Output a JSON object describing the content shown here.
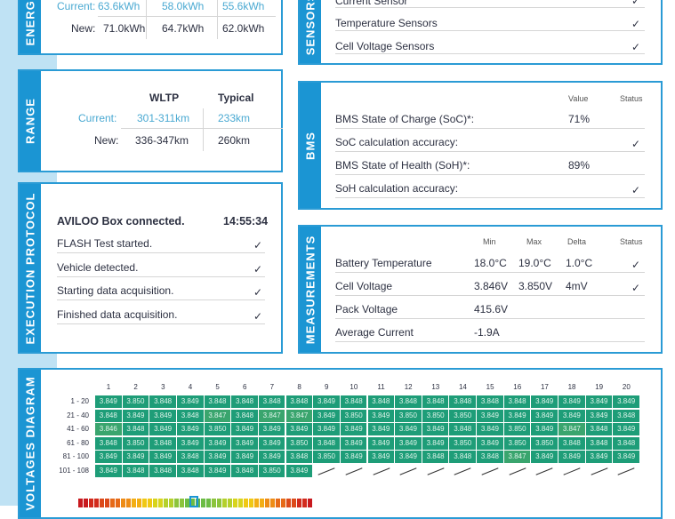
{
  "energy": {
    "label": "ENERGY",
    "current_label": "Current:",
    "new_label": "New:",
    "current": [
      "63.6kWh",
      "58.0kWh",
      "55.6kWh"
    ],
    "new": [
      "71.0kWh",
      "64.7kWh",
      "62.0kWh"
    ]
  },
  "sensors": {
    "label": "SENSORS",
    "items": [
      {
        "name": "Current Sensor"
      },
      {
        "name": "Temperature Sensors"
      },
      {
        "name": "Cell Voltage Sensors"
      }
    ]
  },
  "range": {
    "label": "RANGE",
    "col_wltp": "WLTP",
    "col_typical": "Typical",
    "current_label": "Current:",
    "new_label": "New:",
    "current": [
      "301-311km",
      "233km"
    ],
    "new": [
      "336-347km",
      "260km"
    ]
  },
  "bms": {
    "label": "BMS",
    "col_value": "Value",
    "col_status": "Status",
    "rows": [
      {
        "name": "BMS State of Charge (SoC)*:",
        "value": "71%"
      },
      {
        "name": "SoC calculation accuracy:",
        "value": "",
        "ok": true
      },
      {
        "name": "BMS State of Health (SoH)*:",
        "value": "89%"
      },
      {
        "name": "SoH calculation accuracy:",
        "value": "",
        "ok": true
      }
    ]
  },
  "execution": {
    "label": "EXECUTION PROTOCOL",
    "title": "AVILOO Box connected.",
    "time": "14:55:34",
    "steps": [
      "FLASH Test started.",
      "Vehicle detected.",
      "Starting data acquisition.",
      "Finished data acquisition."
    ]
  },
  "measurements": {
    "label": "MEASUREMENTS",
    "cols": [
      "Min",
      "Max",
      "Delta",
      "Status"
    ],
    "rows": [
      {
        "name": "Battery Temperature",
        "min": "18.0°C",
        "max": "19.0°C",
        "delta": "1.0°C",
        "ok": true
      },
      {
        "name": "Cell Voltage",
        "min": "3.846V",
        "max": "3.850V",
        "delta": "4mV",
        "ok": true
      },
      {
        "name": "Pack Voltage",
        "min": "415.6V",
        "max": "",
        "delta": ""
      },
      {
        "name": "Average Current",
        "min": "-1.9A",
        "max": "",
        "delta": ""
      }
    ]
  },
  "voltages": {
    "label": "VOLTAGES DIAGRAM",
    "row_labels": [
      "1 - 20",
      "21 - 40",
      "41 - 60",
      "61 - 80",
      "81 - 100",
      "101 - 108"
    ],
    "rows": [
      [
        "3.849",
        "3.850",
        "3.848",
        "3.849",
        "3.848",
        "3.848",
        "3.848",
        "3.848",
        "3.849",
        "3.848",
        "3.848",
        "3.848",
        "3.848",
        "3.848",
        "3.848",
        "3.848",
        "3.849",
        "3.849",
        "3.849",
        "3.849"
      ],
      [
        "3.848",
        "3.849",
        "3.849",
        "3.848",
        "3.847",
        "3.848",
        "3.847",
        "3.847",
        "3.849",
        "3.850",
        "3.849",
        "3.850",
        "3.850",
        "3.850",
        "3.849",
        "3.849",
        "3.849",
        "3.849",
        "3.849",
        "3.848"
      ],
      [
        "3.846",
        "3.848",
        "3.849",
        "3.849",
        "3.850",
        "3.849",
        "3.849",
        "3.849",
        "3.849",
        "3.849",
        "3.849",
        "3.849",
        "3.849",
        "3.848",
        "3.849",
        "3.850",
        "3.849",
        "3.847",
        "3.848",
        "3.849"
      ],
      [
        "3.848",
        "3.850",
        "3.848",
        "3.849",
        "3.849",
        "3.849",
        "3.849",
        "3.850",
        "3.848",
        "3.849",
        "3.849",
        "3.849",
        "3.849",
        "3.850",
        "3.849",
        "3.850",
        "3.850",
        "3.848",
        "3.848",
        "3.848"
      ],
      [
        "3.849",
        "3.849",
        "3.849",
        "3.848",
        "3.849",
        "3.849",
        "3.849",
        "3.848",
        "3.850",
        "3.849",
        "3.849",
        "3.849",
        "3.848",
        "3.848",
        "3.848",
        "3.847",
        "3.849",
        "3.849",
        "3.849",
        "3.849"
      ],
      [
        "3.849",
        "3.848",
        "3.848",
        "3.848",
        "3.849",
        "3.848",
        "3.850",
        "3.849"
      ]
    ]
  },
  "colors": {
    "accent": "#1b95d3",
    "cell": "#1e9d78"
  }
}
